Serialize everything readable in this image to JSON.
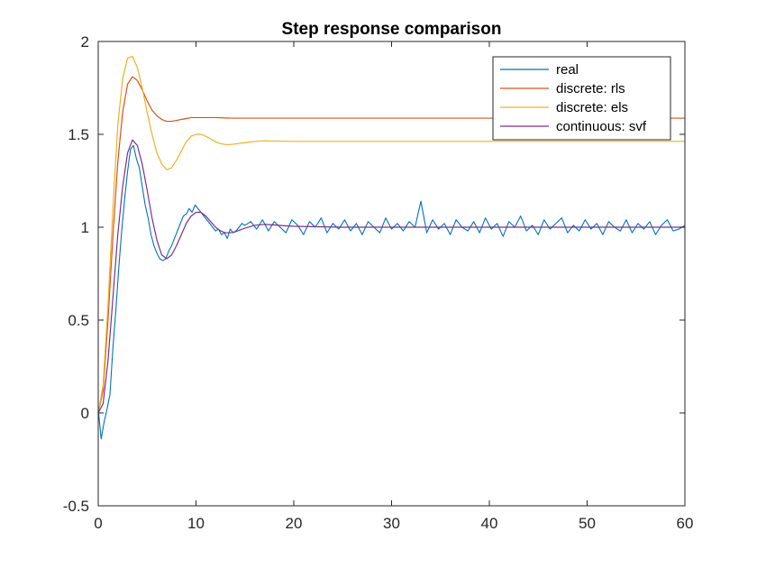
{
  "chart_data": {
    "type": "line",
    "title": "Step response comparison",
    "xlabel": "",
    "ylabel": "",
    "xlim": [
      0,
      60
    ],
    "ylim": [
      -0.5,
      2
    ],
    "xticks": [
      0,
      10,
      20,
      30,
      40,
      50,
      60
    ],
    "yticks": [
      -0.5,
      0,
      0.5,
      1,
      1.5,
      2
    ],
    "xtick_labels": [
      "0",
      "10",
      "20",
      "30",
      "40",
      "50",
      "60"
    ],
    "ytick_labels": [
      "-0.5",
      "0",
      "0.5",
      "1",
      "1.5",
      "2"
    ],
    "grid": false,
    "legend_position": "top-right",
    "series": [
      {
        "name": "real",
        "color": "#0072BD",
        "x": [
          0,
          0.3,
          0.6,
          0.9,
          1.2,
          1.5,
          1.8,
          2.1,
          2.4,
          2.7,
          3.0,
          3.3,
          3.6,
          3.9,
          4.2,
          4.5,
          4.8,
          5.1,
          5.4,
          5.7,
          6.0,
          6.3,
          6.6,
          6.9,
          7.2,
          7.5,
          7.8,
          8.1,
          8.4,
          8.7,
          9.0,
          9.3,
          9.6,
          9.9,
          10.2,
          10.5,
          10.8,
          11.1,
          11.4,
          11.7,
          12.0,
          12.3,
          12.6,
          12.9,
          13.2,
          13.5,
          13.8,
          14.1,
          14.4,
          14.7,
          15.0,
          15.6,
          16.2,
          16.8,
          17.4,
          18.0,
          18.6,
          19.2,
          19.8,
          20.4,
          21.0,
          21.6,
          22.2,
          22.8,
          23.4,
          24.0,
          24.6,
          25.2,
          25.8,
          26.4,
          27.0,
          27.6,
          28.2,
          28.8,
          29.4,
          30.0,
          30.6,
          31.2,
          31.8,
          32.4,
          33.0,
          33.6,
          34.2,
          34.8,
          35.4,
          36.0,
          36.6,
          37.2,
          37.8,
          38.4,
          39.0,
          39.6,
          40.2,
          40.8,
          41.4,
          42.0,
          42.6,
          43.2,
          43.8,
          44.4,
          45.0,
          45.6,
          46.2,
          46.8,
          47.4,
          48.0,
          48.6,
          49.2,
          49.8,
          50.4,
          51.0,
          51.6,
          52.2,
          52.8,
          53.4,
          54.0,
          54.6,
          55.2,
          55.8,
          56.4,
          57.0,
          57.6,
          58.2,
          58.8,
          59.4,
          60.0
        ],
        "y": [
          0.02,
          -0.14,
          -0.05,
          0.02,
          0.1,
          0.35,
          0.55,
          0.78,
          0.98,
          1.15,
          1.3,
          1.42,
          1.44,
          1.37,
          1.32,
          1.22,
          1.12,
          1.05,
          0.96,
          0.9,
          0.86,
          0.83,
          0.82,
          0.83,
          0.87,
          0.9,
          0.94,
          0.98,
          1.02,
          1.06,
          1.07,
          1.1,
          1.08,
          1.12,
          1.1,
          1.08,
          1.06,
          1.04,
          1.02,
          1.0,
          0.98,
          0.99,
          0.96,
          0.97,
          0.94,
          0.99,
          0.97,
          0.98,
          1.0,
          1.02,
          1.01,
          1.03,
          0.99,
          1.04,
          0.98,
          1.03,
          1.0,
          0.97,
          1.04,
          1.01,
          0.96,
          1.03,
          1.0,
          1.05,
          0.97,
          1.02,
          0.99,
          1.04,
          0.98,
          1.02,
          0.96,
          1.03,
          1.0,
          0.97,
          1.05,
          0.99,
          1.02,
          0.98,
          1.03,
          1.0,
          1.14,
          0.97,
          1.04,
          0.99,
          1.02,
          0.96,
          1.04,
          1.0,
          0.98,
          1.03,
          0.97,
          1.05,
          0.99,
          1.02,
          0.95,
          1.03,
          1.0,
          1.06,
          0.98,
          1.01,
          0.96,
          1.04,
          0.99,
          1.02,
          1.05,
          0.97,
          1.01,
          0.98,
          1.04,
          0.99,
          1.02,
          0.96,
          1.03,
          1.0,
          0.98,
          1.04,
          0.97,
          1.02,
          0.99,
          1.03,
          0.96,
          1.01,
          1.04,
          0.98,
          0.99,
          1.01
        ]
      },
      {
        "name": "discrete: rls",
        "color": "#D95319",
        "x": [
          0,
          0.5,
          1.0,
          1.5,
          2.0,
          2.5,
          3.0,
          3.5,
          4.0,
          4.5,
          5.0,
          5.5,
          6.0,
          6.5,
          7.0,
          7.5,
          8.0,
          8.5,
          9.0,
          9.5,
          10.0,
          11.0,
          12.0,
          13.0,
          14.0,
          15.0,
          17.0,
          20.0,
          25.0,
          30.0,
          40.0,
          50.0,
          60.0
        ],
        "y": [
          0,
          0.12,
          0.5,
          0.95,
          1.35,
          1.62,
          1.77,
          1.81,
          1.79,
          1.74,
          1.68,
          1.63,
          1.6,
          1.58,
          1.57,
          1.57,
          1.575,
          1.58,
          1.585,
          1.59,
          1.59,
          1.59,
          1.59,
          1.588,
          1.587,
          1.587,
          1.587,
          1.587,
          1.587,
          1.587,
          1.587,
          1.587,
          1.587
        ]
      },
      {
        "name": "discrete: els",
        "color": "#EDB120",
        "x": [
          0,
          0.5,
          1.0,
          1.5,
          2.0,
          2.5,
          3.0,
          3.5,
          4.0,
          4.5,
          5.0,
          5.5,
          6.0,
          6.5,
          7.0,
          7.5,
          8.0,
          8.5,
          9.0,
          9.5,
          10.0,
          10.5,
          11.0,
          11.5,
          12.0,
          12.5,
          13.0,
          13.5,
          14.0,
          15.0,
          16.0,
          17.0,
          18.0,
          20.0,
          25.0,
          30.0,
          40.0,
          50.0,
          60.0
        ],
        "y": [
          0,
          0.15,
          0.58,
          1.1,
          1.55,
          1.8,
          1.91,
          1.92,
          1.86,
          1.75,
          1.62,
          1.5,
          1.4,
          1.34,
          1.31,
          1.32,
          1.36,
          1.41,
          1.46,
          1.49,
          1.5,
          1.5,
          1.49,
          1.475,
          1.46,
          1.45,
          1.445,
          1.445,
          1.448,
          1.455,
          1.462,
          1.465,
          1.464,
          1.462,
          1.462,
          1.462,
          1.462,
          1.462,
          1.462
        ]
      },
      {
        "name": "continuous: svf",
        "color": "#7E2F8E",
        "x": [
          0,
          0.5,
          1.0,
          1.5,
          2.0,
          2.5,
          3.0,
          3.5,
          4.0,
          4.5,
          5.0,
          5.5,
          6.0,
          6.5,
          7.0,
          7.5,
          8.0,
          8.5,
          9.0,
          9.5,
          10.0,
          10.5,
          11.0,
          11.5,
          12.0,
          12.5,
          13.0,
          13.5,
          14.0,
          14.5,
          15.0,
          16.0,
          17.0,
          18.0,
          19.0,
          20.0,
          25.0,
          30.0,
          40.0,
          50.0,
          60.0
        ],
        "y": [
          0,
          0.05,
          0.28,
          0.62,
          0.96,
          1.22,
          1.4,
          1.47,
          1.44,
          1.34,
          1.2,
          1.05,
          0.93,
          0.85,
          0.83,
          0.85,
          0.9,
          0.96,
          1.02,
          1.06,
          1.08,
          1.08,
          1.06,
          1.03,
          1.0,
          0.98,
          0.97,
          0.97,
          0.975,
          0.985,
          0.995,
          1.01,
          1.015,
          1.012,
          1.008,
          1.005,
          1.0,
          1.0,
          1.0,
          1.0,
          1.0
        ]
      }
    ]
  }
}
